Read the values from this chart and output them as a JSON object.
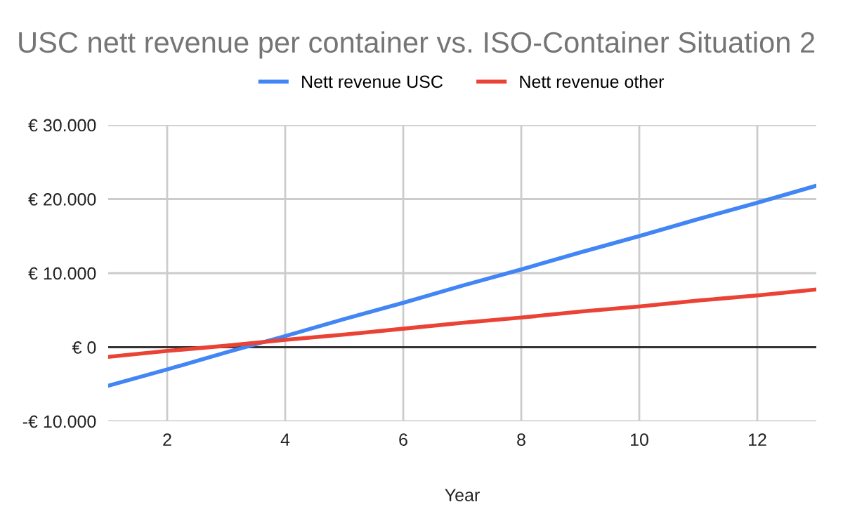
{
  "chart_data": {
    "type": "line",
    "title": "USC nett revenue per container vs. ISO-Container Situation 2",
    "xlabel": "Year",
    "x": [
      1,
      2,
      3,
      4,
      5,
      6,
      7,
      8,
      9,
      10,
      11,
      12,
      13
    ],
    "series": [
      {
        "name": "Nett revenue USC",
        "color": "#4285f4",
        "values": [
          -5200,
          -3000,
          -700,
          1500,
          3800,
          6000,
          8300,
          10500,
          12800,
          15000,
          17300,
          19500,
          21800
        ]
      },
      {
        "name": "Nett revenue other",
        "color": "#ea4335",
        "values": [
          -1300,
          -500,
          200,
          1000,
          1700,
          2500,
          3300,
          4000,
          4800,
          5500,
          6300,
          7000,
          7800
        ]
      }
    ],
    "xlim": [
      1,
      13
    ],
    "xticks": [
      2,
      4,
      6,
      8,
      10,
      12
    ],
    "ylim": [
      -10000,
      30000
    ],
    "yticks": [
      {
        "value": -10000,
        "label": "-€ 10.000"
      },
      {
        "value": 0,
        "label": "€ 0"
      },
      {
        "value": 10000,
        "label": "€ 10.000"
      },
      {
        "value": 20000,
        "label": "€ 20.000"
      },
      {
        "value": 30000,
        "label": "€ 30.000"
      }
    ],
    "ref_lines": [
      {
        "axis": "y",
        "value": 0,
        "color": "#333333"
      }
    ],
    "grid": true,
    "legend": "top",
    "marker": "none",
    "line_style": "solid"
  }
}
